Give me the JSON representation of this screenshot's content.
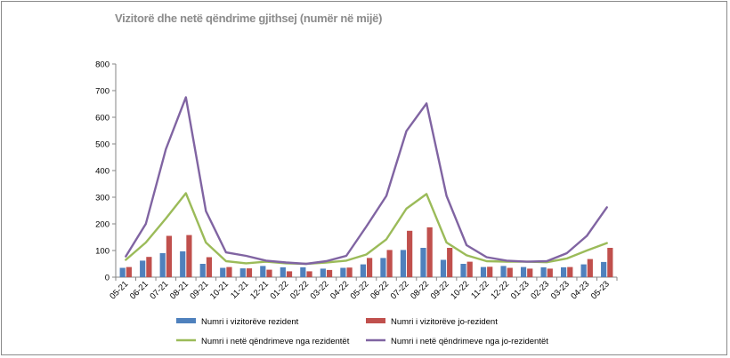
{
  "chart_data": {
    "type": "bar+line",
    "title": "Vizitorë dhe netë qëndrime gjithsej (numër në mijë)",
    "ylim": [
      0,
      800
    ],
    "yticks": [
      0,
      100,
      200,
      300,
      400,
      500,
      600,
      700,
      800
    ],
    "grid": false,
    "legend_position": "bottom",
    "categories": [
      "05-21",
      "06-21",
      "07-21",
      "08-21",
      "09-21",
      "10-21",
      "11-21",
      "12-21",
      "01-22",
      "02-22",
      "03-22",
      "04-22",
      "05-22",
      "06-22",
      "07-22",
      "08-22",
      "09-22",
      "10-22",
      "11-22",
      "12-22",
      "01-23",
      "02-23",
      "03-23",
      "04-23",
      "05-23"
    ],
    "series": [
      {
        "name": "Numri i vizitorëve rezident",
        "kind": "bar",
        "color": "#4f81bd",
        "values": [
          35,
          62,
          90,
          97,
          50,
          35,
          33,
          42,
          37,
          37,
          32,
          35,
          48,
          72,
          102,
          110,
          65,
          50,
          38,
          42,
          38,
          37,
          37,
          48,
          57
        ]
      },
      {
        "name": "Numri i vizitorëve jo-rezident",
        "kind": "bar",
        "color": "#c0504d",
        "values": [
          38,
          76,
          155,
          158,
          75,
          38,
          33,
          28,
          22,
          22,
          27,
          36,
          72,
          102,
          174,
          187,
          110,
          58,
          39,
          35,
          32,
          32,
          38,
          68,
          110
        ]
      },
      {
        "name": "Numri i netë qëndrimeve nga rezidentët",
        "kind": "line",
        "color": "#9bbb59",
        "values": [
          65,
          130,
          220,
          315,
          130,
          60,
          52,
          58,
          52,
          50,
          55,
          62,
          85,
          142,
          257,
          312,
          130,
          82,
          60,
          58,
          58,
          56,
          70,
          100,
          128
        ]
      },
      {
        "name": "Numri i netë qëndrimeve nga jo-rezidentët",
        "kind": "line",
        "color": "#8064a2",
        "values": [
          78,
          200,
          480,
          675,
          248,
          93,
          80,
          62,
          55,
          50,
          60,
          80,
          190,
          305,
          548,
          652,
          305,
          120,
          75,
          62,
          58,
          60,
          90,
          155,
          262
        ]
      }
    ]
  }
}
